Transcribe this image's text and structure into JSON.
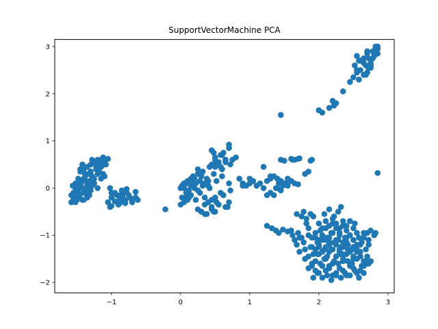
{
  "chart_data": {
    "type": "scatter",
    "title": "SupportVectorMachine PCA",
    "xlabel": "",
    "ylabel": "",
    "xlim": [
      -1.82,
      3.09
    ],
    "ylim": [
      -2.22,
      3.15
    ],
    "xticks": [
      -1,
      0,
      1,
      2,
      3
    ],
    "yticks": [
      -2,
      -1,
      0,
      1,
      2,
      3
    ],
    "grid": false,
    "marker_color": "#1f77b4",
    "series": [
      {
        "name": "",
        "x": [
          -1.55,
          -1.52,
          -1.5,
          -1.48,
          -1.45,
          -1.42,
          -1.4,
          -1.38,
          -1.35,
          -1.33,
          -1.3,
          -1.28,
          -1.25,
          -1.22,
          -1.2,
          -1.18,
          -1.15,
          -1.12,
          -1.1,
          -1.55,
          -1.5,
          -1.45,
          -1.42,
          -1.38,
          -1.35,
          -1.3,
          -1.27,
          -1.22,
          -1.18,
          -1.15,
          -1.12,
          -1.55,
          -1.52,
          -1.48,
          -1.45,
          -1.4,
          -1.36,
          -1.32,
          -1.28,
          -1.25,
          -1.2,
          -1.58,
          -1.55,
          -1.5,
          -1.47,
          -1.43,
          -1.4,
          -1.35,
          -1.32,
          -1.28,
          -1.25,
          -1.58,
          -1.54,
          -1.5,
          -1.46,
          -1.42,
          -1.38,
          -1.35,
          -1.3,
          -1.56,
          -1.52,
          -1.48,
          -1.44,
          -1.4,
          -1.37,
          -1.33,
          -1.2,
          -1.15,
          -1.12,
          -1.08,
          -1.05,
          -1.3,
          -1.25,
          -1.2,
          -1.15,
          -1.1,
          -1.45,
          -1.42,
          -1.38,
          -1.3,
          -1.05,
          -1.02,
          -1.0,
          -0.95,
          -0.9,
          -0.88,
          -0.85,
          -0.8,
          -0.78,
          -0.75,
          -0.72,
          -0.7,
          -0.65,
          -0.62,
          -1.0,
          -0.95,
          -0.88,
          -0.84,
          -1.02,
          -0.92,
          -0.85,
          -0.78,
          -0.65,
          -1.0,
          -0.9,
          -0.83,
          -0.8,
          -0.22,
          0.0,
          0.02,
          0.05,
          0.08,
          0.1,
          0.12,
          0.15,
          0.18,
          0.2,
          0.22,
          0.25,
          0.28,
          0.3,
          0.32,
          0.35,
          0.38,
          0.4,
          0.42,
          0.45,
          0.48,
          0.5,
          0.52,
          0.55,
          0.58,
          0.6,
          0.62,
          0.65,
          0.7,
          0.72,
          0.0,
          0.05,
          0.1,
          0.15,
          0.2,
          0.25,
          0.3,
          0.35,
          0.4,
          0.45,
          0.5,
          0.55,
          0.6,
          0.65,
          0.7,
          0.75,
          0.08,
          0.15,
          0.22,
          0.28,
          0.35,
          0.42,
          0.5,
          0.58,
          0.65,
          0.72,
          0.02,
          0.1,
          0.18,
          0.25,
          0.32,
          0.4,
          0.48,
          0.55,
          0.62,
          0.7,
          0.05,
          0.12,
          0.2,
          0.3,
          0.38,
          0.45,
          0.52,
          0.6,
          0.68,
          0.45,
          0.5,
          0.55,
          0.6,
          0.65,
          0.7,
          0.8,
          0.48,
          0.52,
          0.58,
          0.25,
          0.3,
          0.35,
          0.45,
          0.5,
          0.85,
          0.9,
          0.95,
          1.0,
          1.05,
          1.1,
          1.15,
          1.2,
          1.25,
          1.3,
          1.35,
          1.4,
          1.45,
          1.5,
          1.55,
          1.6,
          0.9,
          1.0,
          1.1,
          1.2,
          1.3,
          1.4,
          1.5,
          1.35,
          1.42,
          1.48,
          1.55,
          1.25,
          1.3,
          1.38,
          1.45,
          1.52,
          1.6,
          1.65,
          1.7,
          1.45,
          1.5,
          1.6,
          1.62,
          1.65,
          1.7,
          1.72,
          1.8,
          1.85,
          1.9,
          1.88,
          1.25,
          1.32,
          1.38,
          1.42,
          1.48,
          1.55,
          1.6,
          1.62,
          1.65,
          1.68,
          1.7,
          1.72,
          1.75,
          1.78,
          1.8,
          1.82,
          1.85,
          1.88,
          1.9,
          1.92,
          1.95,
          1.98,
          2.0,
          2.02,
          2.05,
          2.08,
          2.1,
          2.12,
          2.15,
          2.18,
          2.2,
          2.22,
          2.25,
          2.28,
          2.3,
          2.32,
          2.35,
          2.38,
          2.4,
          2.42,
          2.45,
          2.48,
          2.5,
          2.52,
          2.55,
          2.58,
          2.6,
          2.62,
          2.65,
          2.68,
          2.7,
          2.72,
          2.75,
          1.8,
          1.85,
          1.9,
          1.95,
          2.0,
          2.05,
          2.1,
          2.15,
          2.2,
          2.25,
          2.3,
          2.35,
          2.4,
          2.45,
          2.5,
          2.55,
          2.6,
          2.65,
          2.7,
          1.85,
          1.9,
          1.95,
          2.0,
          2.05,
          2.1,
          2.15,
          2.2,
          2.25,
          2.3,
          2.35,
          2.4,
          2.45,
          2.5,
          2.55,
          2.6,
          2.65,
          1.9,
          1.95,
          2.0,
          2.05,
          2.1,
          2.15,
          2.2,
          2.25,
          2.3,
          2.35,
          2.4,
          2.45,
          2.5,
          2.55,
          2.6,
          1.95,
          2.0,
          2.05,
          2.1,
          2.15,
          2.2,
          2.25,
          2.3,
          2.35,
          2.4,
          2.45,
          2.5,
          2.55,
          2.0,
          2.05,
          2.1,
          2.15,
          2.2,
          2.25,
          2.3,
          2.35,
          2.4,
          2.45,
          2.5,
          1.92,
          1.98,
          2.05,
          2.12,
          2.18,
          2.25,
          2.32,
          2.38,
          2.45,
          2.52,
          2.58,
          2.65,
          1.95,
          2.02,
          2.08,
          2.15,
          2.22,
          2.28,
          2.35,
          2.42,
          2.48,
          2.55,
          2.62,
          2.68,
          2.72,
          2.75,
          1.98,
          2.05,
          2.12,
          2.18,
          2.25,
          2.3,
          2.35,
          2.42,
          2.5,
          2.08,
          2.15,
          2.22,
          2.28,
          2.32,
          1.68,
          1.75,
          1.78,
          1.82,
          1.88,
          1.92,
          1.72,
          1.78,
          1.85,
          2.7,
          2.72,
          2.75,
          2.8,
          2.82,
          2.65,
          2.0,
          2.05,
          2.15,
          2.2,
          2.22,
          2.25,
          2.35,
          2.45,
          2.5,
          2.55,
          2.58,
          2.6,
          2.65,
          2.7,
          2.72,
          2.75,
          2.78,
          2.8,
          2.82,
          2.85,
          2.55,
          2.6,
          2.65,
          2.7,
          2.72,
          2.68,
          2.75,
          2.8,
          2.85,
          2.55,
          2.62,
          2.7,
          2.78,
          2.85,
          2.52,
          2.58,
          2.68,
          2.75,
          2.82,
          2.65,
          2.7,
          1.45,
          2.85
        ],
        "y": [
          -0.25,
          0.1,
          -0.05,
          0.2,
          0.35,
          0.5,
          0.4,
          0.25,
          0.45,
          0.3,
          0.5,
          0.6,
          0.55,
          0.4,
          0.6,
          0.5,
          0.45,
          0.65,
          0.55,
          -0.1,
          -0.2,
          0.05,
          0.15,
          0.3,
          0.1,
          0.35,
          0.2,
          0.45,
          0.35,
          0.6,
          0.5,
          -0.2,
          0.0,
          -0.1,
          0.1,
          0.2,
          0.0,
          0.15,
          0.25,
          0.1,
          0.3,
          -0.15,
          -0.28,
          -0.05,
          -0.2,
          0.0,
          -0.1,
          0.05,
          -0.15,
          0.05,
          0.1,
          -0.3,
          -0.2,
          -0.25,
          -0.15,
          -0.25,
          -0.1,
          -0.2,
          -0.05,
          0.05,
          -0.3,
          -0.1,
          0.05,
          -0.25,
          0.15,
          -0.05,
          0.4,
          0.2,
          0.3,
          0.5,
          0.62,
          0.35,
          0.2,
          0.0,
          0.45,
          0.25,
          0.4,
          0.5,
          0.3,
          0.12,
          -0.3,
          -0.4,
          -0.2,
          -0.1,
          -0.3,
          -0.2,
          -0.05,
          -0.25,
          -0.1,
          -0.15,
          -0.22,
          -0.3,
          -0.08,
          -0.25,
          -0.38,
          -0.28,
          -0.32,
          -0.18,
          0.0,
          -0.15,
          -0.12,
          -0.02,
          -0.2,
          -0.1,
          -0.35,
          -0.28,
          -0.32,
          -0.45,
          -0.35,
          0.05,
          0.1,
          -0.2,
          0.15,
          -0.05,
          0.2,
          0.25,
          0.0,
          0.1,
          0.3,
          -0.1,
          0.25,
          0.35,
          0.1,
          0.2,
          0.05,
          0.45,
          0.5,
          0.3,
          0.6,
          0.15,
          0.55,
          0.7,
          0.4,
          0.75,
          0.6,
          0.85,
          0.5,
          0.0,
          -0.3,
          0.1,
          -0.15,
          0.2,
          -0.05,
          0.3,
          -0.2,
          0.15,
          -0.25,
          0.45,
          -0.35,
          0.25,
          -0.4,
          0.1,
          0.6,
          -0.1,
          0.05,
          -0.25,
          0.15,
          -0.35,
          0.0,
          -0.2,
          -0.1,
          0.6,
          -0.05,
          -0.2,
          -0.25,
          0.15,
          -0.45,
          0.05,
          -0.3,
          -0.5,
          -0.35,
          -0.15,
          -0.3,
          0.0,
          -0.2,
          0.2,
          -0.5,
          -0.55,
          -0.45,
          -0.3,
          0.4,
          -0.4,
          0.8,
          0.65,
          0.5,
          0.7,
          0.55,
          0.92,
          0.65,
          0.75,
          0.55,
          0.45,
          0.4,
          -0.5,
          -0.55,
          -0.4,
          -0.5,
          0.2,
          0.1,
          0.05,
          0.2,
          0.15,
          0.05,
          0.1,
          0.0,
          0.15,
          0.2,
          -0.15,
          0.2,
          0.15,
          0.1,
          0.05,
          0.15,
          0.05,
          0.1,
          0.05,
          0.45,
          0.25,
          0.0,
          0.1,
          0.25,
          0.1,
          0.05,
          0.2,
          -0.15,
          -0.1,
          0.0,
          -0.05,
          0.1,
          0.15,
          0.1,
          0.08,
          0.6,
          0.58,
          0.62,
          0.6,
          0.6,
          0.62,
          0.63,
          0.3,
          0.35,
          0.6,
          0.58,
          -0.8,
          -0.85,
          -0.9,
          -0.95,
          -0.88,
          -0.92,
          -0.9,
          -1.0,
          -1.1,
          -1.2,
          -0.95,
          -1.35,
          -1.05,
          -1.15,
          -1.3,
          -0.75,
          -0.85,
          -1.25,
          -1.05,
          -1.4,
          -0.95,
          -1.15,
          -1.25,
          -0.9,
          -1.1,
          -1.3,
          -0.85,
          -1.05,
          -1.2,
          -0.95,
          -0.75,
          -1.15,
          -0.85,
          -1.1,
          -0.95,
          -1.25,
          -0.8,
          -1.05,
          -0.9,
          -1.2,
          -1.0,
          -1.3,
          -1.1,
          -0.75,
          -1.2,
          -1.05,
          -1.35,
          -1.15,
          -0.95,
          -1.3,
          -1.45,
          -1.2,
          -1.55,
          -1.5,
          -1.45,
          -1.6,
          -1.55,
          -1.4,
          -1.65,
          -1.5,
          -1.35,
          -1.6,
          -1.45,
          -1.3,
          -1.55,
          -1.4,
          -1.6,
          -1.5,
          -1.35,
          -1.45,
          -1.55,
          -1.6,
          -1.7,
          -1.65,
          -1.75,
          -1.8,
          -1.65,
          -1.75,
          -1.7,
          -1.85,
          -1.8,
          -1.7,
          -1.75,
          -1.85,
          -1.65,
          -1.7,
          -1.8,
          -1.75,
          -1.65,
          -1.25,
          -1.3,
          -1.2,
          -1.35,
          -1.25,
          -1.15,
          -1.3,
          -1.2,
          -1.4,
          -1.25,
          -1.15,
          -1.35,
          -1.25,
          -1.3,
          -1.2,
          -1.05,
          -1.1,
          -1.0,
          -1.1,
          -1.05,
          -0.95,
          -1.1,
          -1.0,
          -1.15,
          -1.05,
          -1.0,
          -1.1,
          -0.95,
          -0.75,
          -0.85,
          -0.7,
          -0.8,
          -0.65,
          -0.75,
          -0.85,
          -0.7,
          -0.8,
          -0.7,
          -0.85,
          -1.9,
          -1.8,
          -1.9,
          -1.85,
          -1.95,
          -1.85,
          -1.9,
          -1.8,
          -1.85,
          -1.75,
          -1.9,
          -1.8,
          -1.55,
          -1.6,
          -1.5,
          -1.65,
          -1.55,
          -1.6,
          -1.5,
          -1.55,
          -1.6,
          -1.5,
          -1.65,
          -1.55,
          -1.6,
          -1.55,
          -1.4,
          -1.35,
          -1.45,
          -1.3,
          -1.45,
          -1.35,
          -1.4,
          -1.3,
          -1.45,
          -0.55,
          -0.45,
          -0.6,
          -0.5,
          -0.4,
          -0.55,
          -0.6,
          -0.5,
          -0.65,
          -0.55,
          -0.6,
          -1.05,
          -1.15,
          -1.0,
          -0.95,
          -1.1,
          -0.9,
          -1.0,
          -0.95,
          -1.05,
          1.65,
          1.6,
          1.7,
          1.85,
          1.75,
          1.8,
          2.05,
          2.25,
          2.35,
          2.45,
          2.3,
          2.5,
          2.4,
          2.45,
          2.55,
          2.6,
          2.75,
          2.85,
          2.95,
          3.0,
          2.8,
          2.7,
          2.65,
          2.9,
          2.75,
          2.4,
          2.55,
          2.8,
          2.95,
          2.5,
          2.7,
          2.85,
          2.9,
          2.85,
          2.6,
          2.7,
          2.6,
          2.65,
          3.0,
          2.75,
          2.45,
          1.55,
          0.32
        ]
      }
    ]
  }
}
